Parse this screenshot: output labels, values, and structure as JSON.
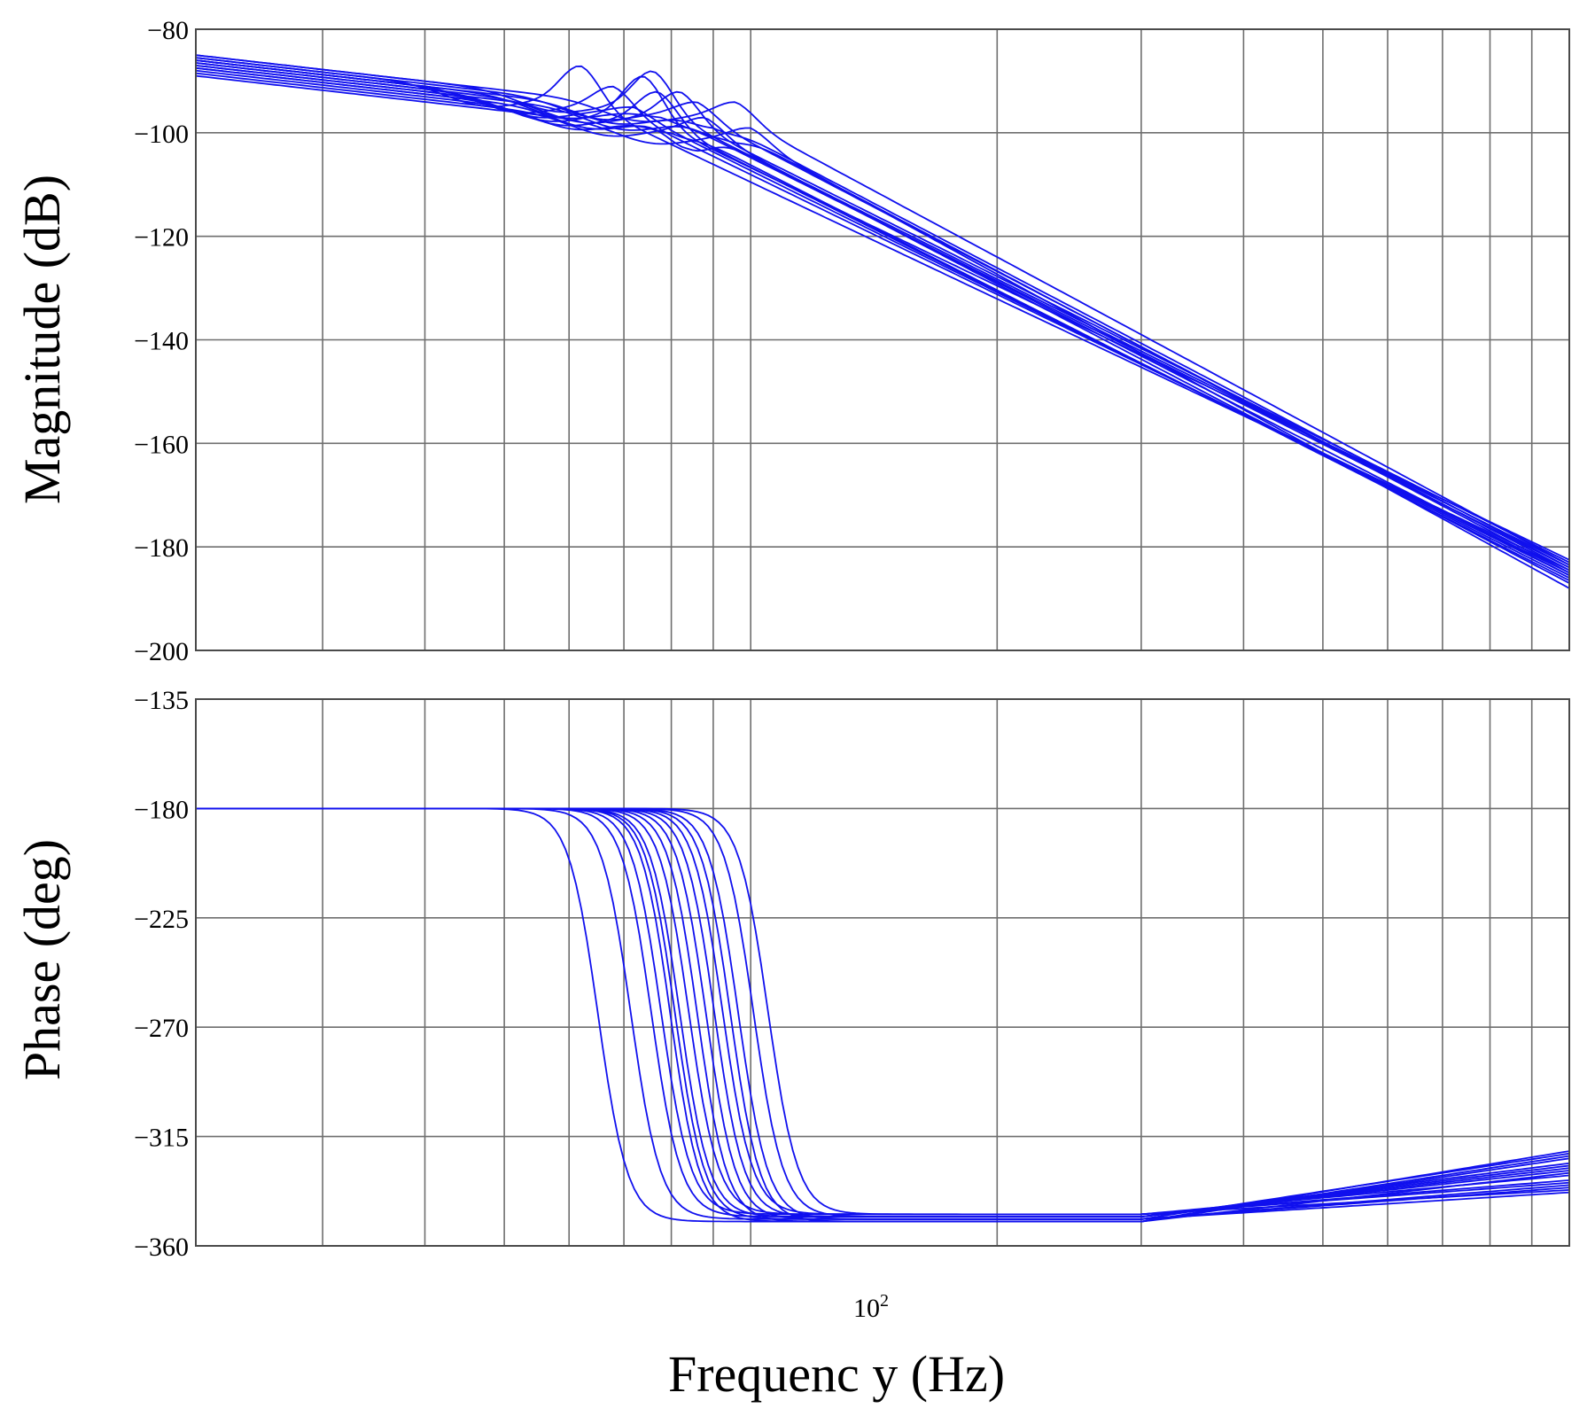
{
  "chart_data": {
    "type": "line",
    "title": "",
    "xlabel": "Frequenc y (Hz)",
    "x_scale": "log",
    "xlim": [
      21,
      1000
    ],
    "x_tick_label": {
      "base": "10",
      "exp": "2",
      "value": 100
    },
    "line_color": "#1010ee",
    "grid": true,
    "legend": "none",
    "panels": [
      {
        "id": "magnitude",
        "ylabel": "Magnitude (dB)",
        "ylim": [
          -200,
          -80
        ],
        "yticks": [
          -80,
          -100,
          -120,
          -140,
          -160,
          -180,
          -200
        ],
        "ytick_labels": [
          "−80",
          "−100",
          "−120",
          "−140",
          "−160",
          "−180",
          "−200"
        ],
        "series_count": 16,
        "resonance_hz_range": [
          60,
          100
        ],
        "peak_db_range": [
          -107,
          -87
        ],
        "low_freq_db_at_21hz": [
          -89,
          -84
        ],
        "high_freq_db_at_1000hz": [
          -188,
          -182
        ]
      },
      {
        "id": "phase",
        "ylabel": "Phase (deg)",
        "ylim": [
          -360,
          -135
        ],
        "yticks": [
          -135,
          -180,
          -225,
          -270,
          -315,
          -360
        ],
        "ytick_labels": [
          "−135",
          "−180",
          "−225",
          "−270",
          "−315",
          "−360"
        ],
        "series_count": 16,
        "start_deg": -180,
        "settled_deg_range": [
          -355,
          -342
        ],
        "end_deg_at_1000hz_range": [
          -338,
          -320
        ]
      }
    ],
    "series": [
      {
        "f0": 62,
        "peak_db": -87,
        "mag_start": -85.5,
        "mag_end": -184.5,
        "phase_end": -330
      },
      {
        "f0": 68,
        "peak_db": -91,
        "mag_start": -86.0,
        "mag_end": -185.0,
        "phase_end": -322
      },
      {
        "f0": 72,
        "peak_db": -95,
        "mag_start": -86.5,
        "mag_end": -185.5,
        "phase_end": -327
      },
      {
        "f0": 74,
        "peak_db": -89,
        "mag_start": -87.0,
        "mag_end": -182.5,
        "phase_end": -333
      },
      {
        "f0": 76,
        "peak_db": -88,
        "mag_start": -85.0,
        "mag_end": -183.5,
        "phase_end": -321
      },
      {
        "f0": 77,
        "peak_db": -92,
        "mag_start": -87.5,
        "mag_end": -186.0,
        "phase_end": -336
      },
      {
        "f0": 78,
        "peak_db": -97,
        "mag_start": -86.0,
        "mag_end": -184.0,
        "phase_end": -328
      },
      {
        "f0": 80,
        "peak_db": -100,
        "mag_start": -88.0,
        "mag_end": -186.5,
        "phase_end": -334
      },
      {
        "f0": 82,
        "peak_db": -92,
        "mag_start": -86.5,
        "mag_end": -183.0,
        "phase_end": -324
      },
      {
        "f0": 84,
        "peak_db": -103,
        "mag_start": -87.5,
        "mag_end": -185.5,
        "phase_end": -338
      },
      {
        "f0": 86,
        "peak_db": -94,
        "mag_start": -85.5,
        "mag_end": -184.5,
        "phase_end": -326
      },
      {
        "f0": 88,
        "peak_db": -97,
        "mag_start": -88.5,
        "mag_end": -187.0,
        "phase_end": -331
      },
      {
        "f0": 90,
        "peak_db": -99,
        "mag_start": -86.0,
        "mag_end": -184.0,
        "phase_end": -323
      },
      {
        "f0": 92,
        "peak_db": -101,
        "mag_start": -87.0,
        "mag_end": -185.0,
        "phase_end": -335
      },
      {
        "f0": 96,
        "peak_db": -94,
        "mag_start": -85.0,
        "mag_end": -183.5,
        "phase_end": -329
      },
      {
        "f0": 100,
        "peak_db": -99,
        "mag_start": -89.0,
        "mag_end": -188.0,
        "phase_end": -337
      }
    ]
  }
}
